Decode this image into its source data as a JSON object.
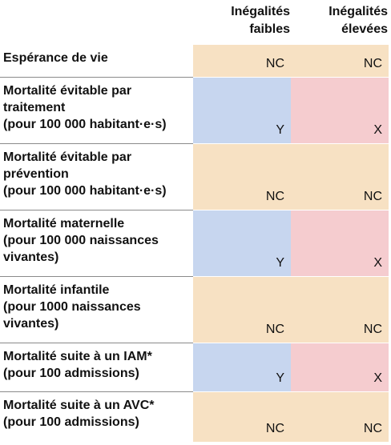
{
  "columns": {
    "low": "Inégalités\nfaibles",
    "high": "Inégalités\nélevées"
  },
  "rows": [
    {
      "label": "Espérance de vie",
      "low": "NC",
      "high": "NC",
      "low_status": "neutral",
      "high_status": "neutral"
    },
    {
      "label": "Mortalité évitable par\ntraitement\n(pour 100 000 habitant·e·s)",
      "low": "Y",
      "high": "X",
      "low_status": "low",
      "high_status": "high"
    },
    {
      "label": "Mortalité évitable par\nprévention\n(pour 100 000 habitant·e·s)",
      "low": "NC",
      "high": "NC",
      "low_status": "neutral",
      "high_status": "neutral"
    },
    {
      "label": "Mortalité maternelle\n(pour 100 000 naissances\nvivantes)",
      "low": "Y",
      "high": "X",
      "low_status": "low",
      "high_status": "high"
    },
    {
      "label": "Mortalité infantile\n(pour 1000 naissances\nvivantes)",
      "low": "NC",
      "high": "NC",
      "low_status": "neutral",
      "high_status": "neutral"
    },
    {
      "label": "Mortalité suite à un IAM*\n(pour 100 admissions)",
      "low": "Y",
      "high": "X",
      "low_status": "low",
      "high_status": "high"
    },
    {
      "label": "Mortalité suite à un AVC*\n(pour 100 admissions)",
      "low": "NC",
      "high": "NC",
      "low_status": "neutral",
      "high_status": "neutral"
    }
  ],
  "colors": {
    "neutral": "#f7e1c3",
    "low": "#c7d6ef",
    "high": "#f5cccf",
    "divider": "#8a8a8a"
  }
}
